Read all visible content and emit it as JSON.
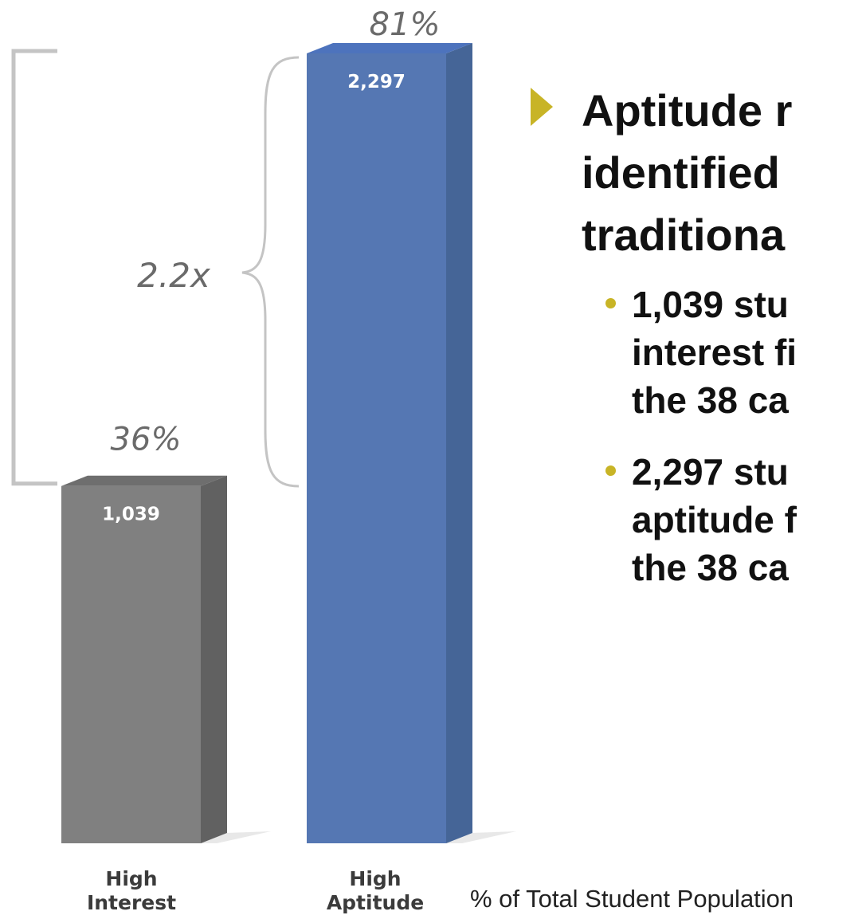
{
  "chart_data": {
    "type": "bar",
    "categories": [
      [
        "High",
        "Interest"
      ],
      [
        "High",
        "Aptitude"
      ]
    ],
    "values": [
      1039,
      2297
    ],
    "value_labels": [
      "1,039",
      "2,297"
    ],
    "percent_labels": [
      "36%",
      "81%"
    ],
    "percent_values": [
      36,
      81
    ],
    "ratio_label": "2.2x",
    "colors": [
      "#808080",
      "#5577b3"
    ],
    "side_colors": [
      "#616161",
      "#456597"
    ],
    "top_colors": [
      "#6e6e6e",
      "#4d73bd"
    ],
    "footnote": "% of Total Student Population"
  },
  "bullets": {
    "main": [
      "Aptitude r",
      "identified",
      "traditiona"
    ],
    "subs": [
      [
        "1,039 stu",
        "interest fi",
        "the 38 ca"
      ],
      [
        "2,297 stu",
        "aptitude f",
        "the 38 ca"
      ]
    ]
  }
}
